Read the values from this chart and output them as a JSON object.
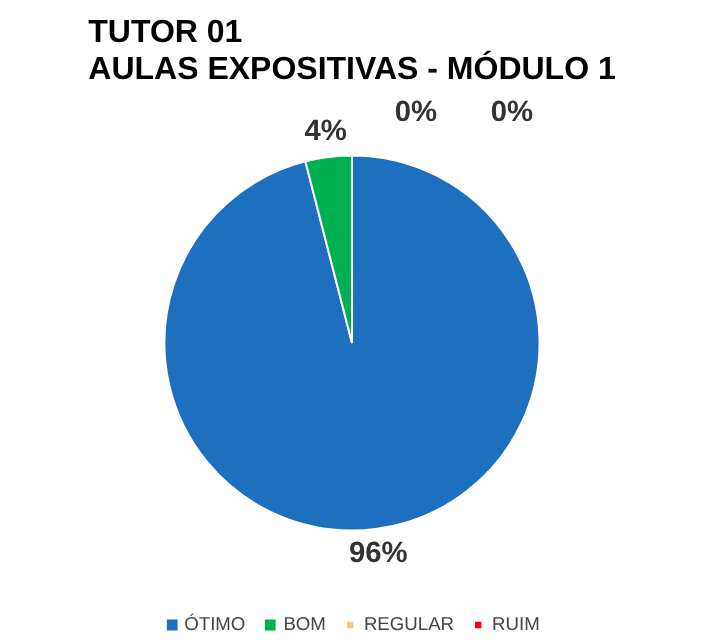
{
  "chart_data": {
    "type": "pie",
    "title": "TUTOR 01\nAULAS EXPOSITIVAS - MÓDULO 1",
    "categories": [
      "ÓTIMO",
      "BOM",
      "REGULAR",
      "RUIM"
    ],
    "values": [
      96,
      4,
      0,
      0
    ],
    "colors": [
      "#1f6fbf",
      "#00b050",
      "#fac090",
      "#ff0000"
    ],
    "value_labels": [
      "96%",
      "4%",
      "0%",
      "0%"
    ],
    "legend": "bottom"
  }
}
